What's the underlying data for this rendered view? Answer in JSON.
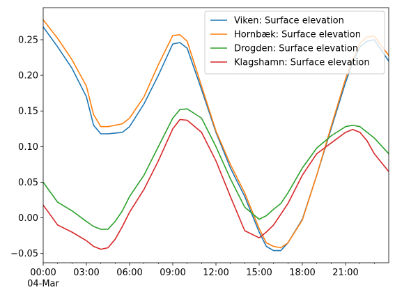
{
  "chart_data": {
    "type": "line",
    "title": "",
    "xlabel": "",
    "ylabel": "",
    "x_ticks": [
      "00:00",
      "03:00",
      "06:00",
      "09:00",
      "12:00",
      "15:00",
      "18:00",
      "21:00"
    ],
    "x_tick_hours": [
      0,
      3,
      6,
      9,
      12,
      15,
      18,
      21
    ],
    "x_date_label": "04-Mar",
    "xlim_hours": [
      0,
      24
    ],
    "ylim": [
      -0.063,
      0.295
    ],
    "y_ticks": [
      -0.05,
      0.0,
      0.05,
      0.1,
      0.15,
      0.2,
      0.25
    ],
    "y_tick_labels": [
      "−0.05",
      "0.00",
      "0.05",
      "0.10",
      "0.15",
      "0.20",
      "0.25"
    ],
    "grid": false,
    "legend_position": "top-right",
    "x_hours": [
      0,
      1,
      2,
      3,
      3.5,
      4,
      4.5,
      5,
      5.5,
      6,
      7,
      8,
      9,
      9.5,
      10,
      11,
      12,
      13,
      14,
      15,
      15.5,
      16,
      16.5,
      17,
      18,
      19,
      20,
      21,
      21.5,
      22,
      22.5,
      23,
      24
    ],
    "series": [
      {
        "name": "Viken: Surface elevation",
        "color": "#1f77b4",
        "values": [
          0.268,
          0.24,
          0.21,
          0.17,
          0.13,
          0.118,
          0.118,
          0.119,
          0.12,
          0.128,
          0.16,
          0.2,
          0.244,
          0.246,
          0.238,
          0.18,
          0.12,
          0.07,
          0.03,
          -0.02,
          -0.04,
          -0.046,
          -0.046,
          -0.035,
          -0.002,
          0.06,
          0.125,
          0.19,
          0.218,
          0.24,
          0.248,
          0.25,
          0.22
        ]
      },
      {
        "name": "Hornbæk: Surface elevation",
        "color": "#ff7f0e",
        "values": [
          0.278,
          0.252,
          0.222,
          0.185,
          0.145,
          0.128,
          0.128,
          0.13,
          0.132,
          0.14,
          0.17,
          0.215,
          0.256,
          0.257,
          0.248,
          0.185,
          0.122,
          0.075,
          0.035,
          -0.015,
          -0.035,
          -0.04,
          -0.042,
          -0.035,
          -0.003,
          0.06,
          0.128,
          0.195,
          0.222,
          0.245,
          0.254,
          0.255,
          0.228
        ]
      },
      {
        "name": "Drogden: Surface elevation",
        "color": "#2ca02c",
        "values": [
          0.05,
          0.022,
          0.01,
          -0.005,
          -0.012,
          -0.016,
          -0.016,
          -0.005,
          0.01,
          0.03,
          0.06,
          0.1,
          0.14,
          0.152,
          0.153,
          0.14,
          0.1,
          0.055,
          0.015,
          -0.002,
          0.003,
          0.012,
          0.02,
          0.035,
          0.07,
          0.098,
          0.115,
          0.128,
          0.13,
          0.128,
          0.12,
          0.112,
          0.09
        ]
      },
      {
        "name": "Klagshamn: Surface elevation",
        "color": "#d62728",
        "values": [
          0.018,
          -0.01,
          -0.02,
          -0.032,
          -0.04,
          -0.044,
          -0.042,
          -0.03,
          -0.012,
          0.008,
          0.04,
          0.08,
          0.125,
          0.138,
          0.137,
          0.12,
          0.08,
          0.03,
          -0.018,
          -0.028,
          -0.02,
          -0.01,
          0.005,
          0.02,
          0.06,
          0.09,
          0.105,
          0.12,
          0.124,
          0.12,
          0.108,
          0.09,
          0.065
        ]
      }
    ]
  }
}
